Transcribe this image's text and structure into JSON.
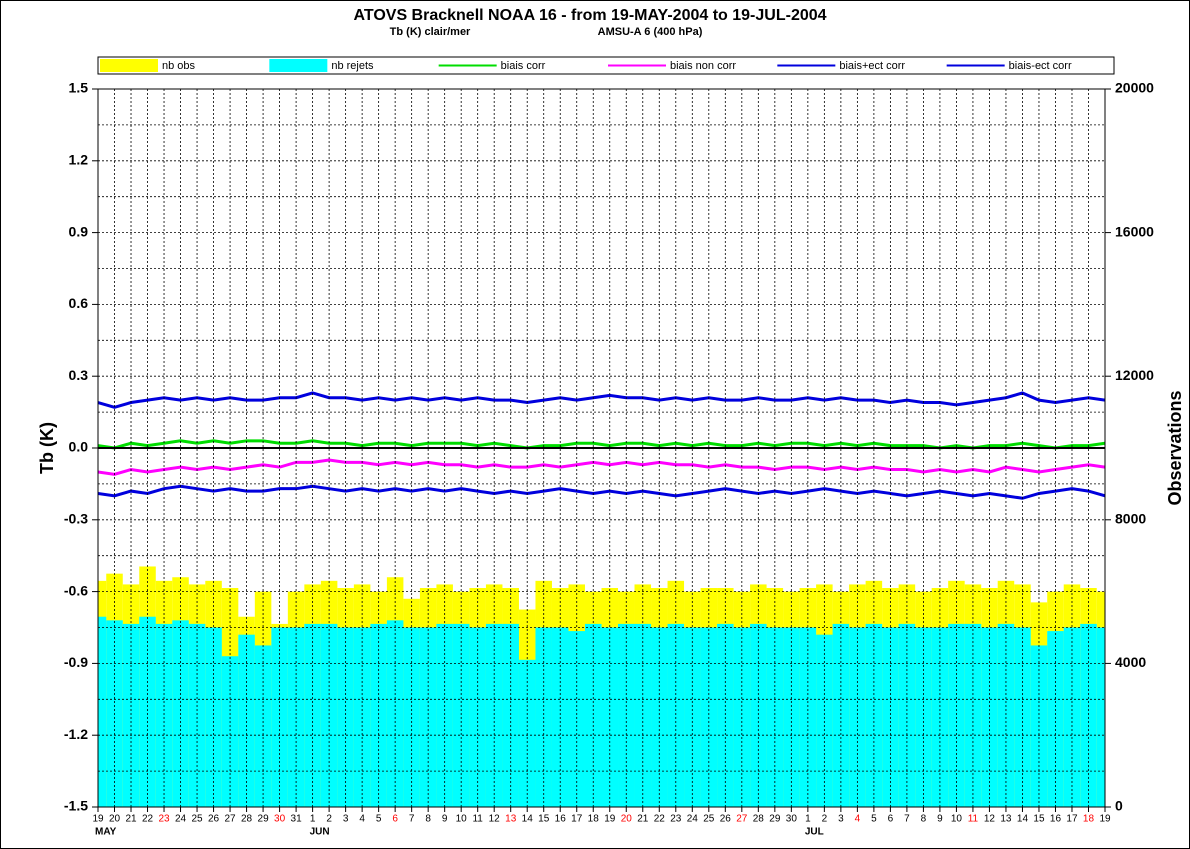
{
  "chart_data": {
    "type": "bar-line",
    "title": "ATOVS Bracknell NOAA 16 -  from 19-MAY-2004 to 19-JUL-2004",
    "subtitle_left": "Tb (K)    clair/mer",
    "subtitle_right": "AMSU-A  6  (400 hPa)",
    "ylabel": "Tb (K)",
    "y2label": "Observations",
    "categories": [
      "19",
      "20",
      "21",
      "22",
      "23",
      "24",
      "25",
      "26",
      "27",
      "28",
      "29",
      "30",
      "31",
      "1",
      "2",
      "3",
      "4",
      "5",
      "6",
      "7",
      "8",
      "9",
      "10",
      "11",
      "12",
      "13",
      "14",
      "15",
      "16",
      "17",
      "18",
      "19",
      "20",
      "21",
      "22",
      "23",
      "24",
      "25",
      "26",
      "27",
      "28",
      "29",
      "30",
      "1",
      "2",
      "3",
      "4",
      "5",
      "6",
      "7",
      "8",
      "9",
      "10",
      "11",
      "12",
      "13",
      "14",
      "15",
      "16",
      "17",
      "18",
      "19"
    ],
    "month_labels": [
      {
        "label": "MAY",
        "index": 0
      },
      {
        "label": "JUN",
        "index": 13
      },
      {
        "label": "JUL",
        "index": 43
      }
    ],
    "highlight_tick_indices": [
      4,
      11,
      18,
      25,
      32,
      39,
      46,
      53,
      60
    ],
    "highlight_color": "#ff0000",
    "ylim": [
      -1.5,
      1.5
    ],
    "yticks": [
      -1.5,
      -1.2,
      -0.9,
      -0.6,
      -0.3,
      {
        "value": 0,
        "label": "0.0"
      },
      0.3,
      0.6,
      0.9,
      1.2,
      1.5
    ],
    "yticks_minor": [
      -1.35,
      -1.05,
      -0.75,
      -0.45,
      -0.15,
      0.15,
      0.45,
      0.75,
      1.05,
      1.35
    ],
    "y2lim": [
      0,
      20000
    ],
    "y2ticks": [
      0,
      4000,
      8000,
      12000,
      16000,
      20000
    ],
    "grid": true,
    "series": [
      {
        "name": "nb obs",
        "kind": "bar",
        "axis": "y2",
        "color": "#ffff00",
        "values": [
          6300,
          6500,
          6200,
          6700,
          6300,
          6400,
          6200,
          6300,
          6100,
          5300,
          6000,
          5100,
          6000,
          6200,
          6300,
          6100,
          6200,
          6000,
          6400,
          5800,
          6100,
          6200,
          6000,
          6100,
          6200,
          6100,
          5500,
          6300,
          6100,
          6200,
          6000,
          6100,
          6000,
          6200,
          6100,
          6300,
          6000,
          6100,
          6100,
          6000,
          6200,
          6100,
          6000,
          6100,
          6200,
          6000,
          6200,
          6300,
          6100,
          6200,
          6000,
          6100,
          6300,
          6200,
          6100,
          6300,
          6200,
          5700,
          6000,
          6200,
          6100,
          6000
        ]
      },
      {
        "name": "nb rejets",
        "kind": "bar",
        "axis": "y2",
        "color": "#00ffff",
        "values": [
          5300,
          5200,
          5100,
          5300,
          5100,
          5200,
          5100,
          5000,
          4200,
          4800,
          4500,
          5000,
          5000,
          5100,
          5100,
          5000,
          5000,
          5100,
          5200,
          5000,
          5000,
          5100,
          5100,
          5000,
          5100,
          5100,
          4100,
          5000,
          5000,
          4900,
          5100,
          5000,
          5100,
          5100,
          5000,
          5100,
          5000,
          5000,
          5100,
          5000,
          5100,
          5000,
          5000,
          5000,
          4800,
          5100,
          5000,
          5100,
          5000,
          5100,
          5000,
          5000,
          5100,
          5100,
          5000,
          5100,
          5000,
          4500,
          4900,
          5000,
          5100,
          5000
        ]
      },
      {
        "name": "biais corr",
        "kind": "line",
        "color": "#00dd00",
        "values": [
          0.01,
          0.0,
          0.02,
          0.01,
          0.02,
          0.03,
          0.02,
          0.03,
          0.02,
          0.03,
          0.03,
          0.02,
          0.02,
          0.03,
          0.02,
          0.02,
          0.01,
          0.02,
          0.02,
          0.01,
          0.02,
          0.02,
          0.02,
          0.01,
          0.02,
          0.01,
          0.0,
          0.01,
          0.01,
          0.02,
          0.02,
          0.01,
          0.02,
          0.02,
          0.01,
          0.02,
          0.01,
          0.02,
          0.01,
          0.01,
          0.02,
          0.01,
          0.02,
          0.02,
          0.01,
          0.02,
          0.01,
          0.02,
          0.01,
          0.01,
          0.01,
          0.0,
          0.01,
          0.0,
          0.01,
          0.01,
          0.02,
          0.01,
          0.0,
          0.01,
          0.01,
          0.02
        ]
      },
      {
        "name": "biais non corr",
        "kind": "line",
        "color": "#ff00ff",
        "values": [
          -0.1,
          -0.11,
          -0.09,
          -0.1,
          -0.09,
          -0.08,
          -0.09,
          -0.08,
          -0.09,
          -0.08,
          -0.07,
          -0.08,
          -0.06,
          -0.06,
          -0.05,
          -0.06,
          -0.06,
          -0.07,
          -0.06,
          -0.07,
          -0.06,
          -0.07,
          -0.07,
          -0.08,
          -0.07,
          -0.08,
          -0.08,
          -0.07,
          -0.08,
          -0.07,
          -0.06,
          -0.07,
          -0.06,
          -0.07,
          -0.06,
          -0.07,
          -0.07,
          -0.08,
          -0.07,
          -0.08,
          -0.08,
          -0.09,
          -0.08,
          -0.08,
          -0.09,
          -0.08,
          -0.09,
          -0.08,
          -0.09,
          -0.09,
          -0.1,
          -0.09,
          -0.1,
          -0.09,
          -0.1,
          -0.08,
          -0.09,
          -0.1,
          -0.09,
          -0.08,
          -0.07,
          -0.08
        ]
      },
      {
        "name": "biais+ect corr",
        "kind": "line",
        "color": "#0000dd",
        "values": [
          0.19,
          0.17,
          0.19,
          0.2,
          0.21,
          0.2,
          0.21,
          0.2,
          0.21,
          0.2,
          0.2,
          0.21,
          0.21,
          0.23,
          0.21,
          0.21,
          0.2,
          0.21,
          0.2,
          0.21,
          0.2,
          0.21,
          0.2,
          0.21,
          0.2,
          0.2,
          0.19,
          0.2,
          0.21,
          0.2,
          0.21,
          0.22,
          0.21,
          0.21,
          0.2,
          0.21,
          0.2,
          0.21,
          0.2,
          0.2,
          0.21,
          0.2,
          0.2,
          0.21,
          0.2,
          0.21,
          0.2,
          0.2,
          0.19,
          0.2,
          0.19,
          0.19,
          0.18,
          0.19,
          0.2,
          0.21,
          0.23,
          0.2,
          0.19,
          0.2,
          0.21,
          0.2
        ]
      },
      {
        "name": "biais-ect corr",
        "kind": "line",
        "color": "#0000dd",
        "values": [
          -0.19,
          -0.2,
          -0.18,
          -0.19,
          -0.17,
          -0.16,
          -0.17,
          -0.18,
          -0.17,
          -0.18,
          -0.18,
          -0.17,
          -0.17,
          -0.16,
          -0.17,
          -0.18,
          -0.17,
          -0.18,
          -0.17,
          -0.18,
          -0.17,
          -0.18,
          -0.17,
          -0.18,
          -0.19,
          -0.18,
          -0.19,
          -0.18,
          -0.17,
          -0.18,
          -0.19,
          -0.18,
          -0.19,
          -0.18,
          -0.19,
          -0.2,
          -0.19,
          -0.18,
          -0.17,
          -0.18,
          -0.19,
          -0.18,
          -0.19,
          -0.18,
          -0.17,
          -0.18,
          -0.19,
          -0.18,
          -0.19,
          -0.2,
          -0.19,
          -0.18,
          -0.19,
          -0.2,
          -0.19,
          -0.2,
          -0.21,
          -0.19,
          -0.18,
          -0.17,
          -0.18,
          -0.2
        ]
      }
    ]
  }
}
